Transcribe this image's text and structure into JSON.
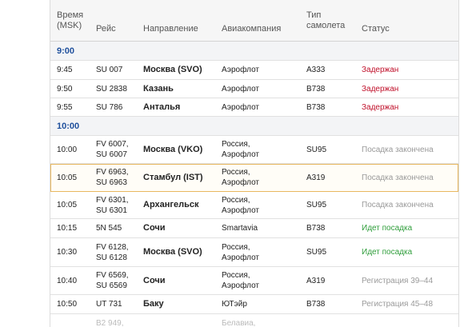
{
  "header": {
    "time": "Время\n(MSK)",
    "flight": "Рейс",
    "direction": "Направление",
    "airline": "Авиакомпания",
    "plane": "Тип\nсамолета",
    "status": "Статус"
  },
  "groups": [
    {
      "label": "9:00",
      "flights": [
        {
          "time": "9:45",
          "flight": "SU 007",
          "direction": "Москва (SVO)",
          "airline": "Аэрофлот",
          "plane": "A333",
          "status": "Задержан",
          "status_type": "delayed"
        },
        {
          "time": "9:50",
          "flight": "SU 2838",
          "direction": "Казань",
          "airline": "Аэрофлот",
          "plane": "B738",
          "status": "Задержан",
          "status_type": "delayed"
        },
        {
          "time": "9:55",
          "flight": "SU 786",
          "direction": "Анталья",
          "airline": "Аэрофлот",
          "plane": "B738",
          "status": "Задержан",
          "status_type": "delayed"
        }
      ]
    },
    {
      "label": "10:00",
      "flights": [
        {
          "time": "10:00",
          "flight": "FV 6007,\nSU 6007",
          "direction": "Москва (VKO)",
          "airline": "Россия,\nАэрофлот",
          "plane": "SU95",
          "status": "Посадка закончена",
          "status_type": "done"
        },
        {
          "time": "10:05",
          "flight": "FV 6963,\nSU 6963",
          "direction": "Стамбул (IST)",
          "airline": "Россия,\nАэрофлот",
          "plane": "A319",
          "status": "Посадка закончена",
          "status_type": "done",
          "highlighted": true
        },
        {
          "time": "10:05",
          "flight": "FV 6301,\nSU 6301",
          "direction": "Архангельск",
          "airline": "Россия,\nАэрофлот",
          "plane": "SU95",
          "status": "Посадка закончена",
          "status_type": "done"
        },
        {
          "time": "10:15",
          "flight": "5N 545",
          "direction": "Сочи",
          "airline": "Smartavia",
          "plane": "B738",
          "status": "Идет посадка",
          "status_type": "boarding"
        },
        {
          "time": "10:30",
          "flight": "FV 6128,\nSU 6128",
          "direction": "Москва (SVO)",
          "airline": "Россия,\nАэрофлот",
          "plane": "SU95",
          "status": "Идет посадка",
          "status_type": "boarding"
        },
        {
          "time": "10:40",
          "flight": "FV 6569,\nSU 6569",
          "direction": "Сочи",
          "airline": "Россия,\nАэрофлот",
          "plane": "A319",
          "status": "Регистрация 39–44",
          "status_type": "registration"
        },
        {
          "time": "10:50",
          "flight": "UT 731",
          "direction": "Баку",
          "airline": "ЮТэйр",
          "plane": "B738",
          "status": "Регистрация 45–48",
          "status_type": "registration"
        }
      ]
    }
  ],
  "partial_row": {
    "flight": "B2 949,",
    "airline": "Белавиа,"
  },
  "colors": {
    "group_label": "#1e4f9c",
    "delayed": "#c0102a",
    "done": "#9a9a9a",
    "boarding": "#2e9d3a",
    "registration": "#9a9a9a",
    "highlight_border": "#e8b860"
  }
}
